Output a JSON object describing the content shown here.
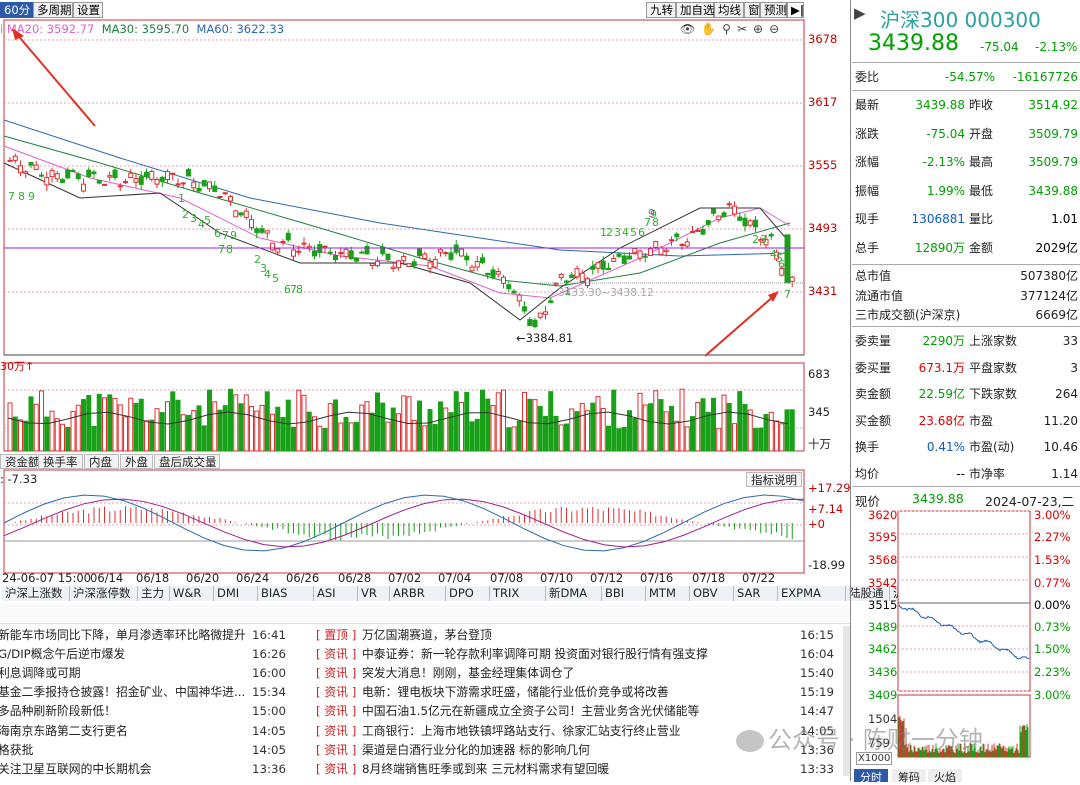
{
  "toolbar": {
    "period": "60分",
    "multi": "多周期",
    "settings": "设置",
    "right": [
      "九转",
      "加自选",
      "均线",
      "窗",
      "预测"
    ]
  },
  "ma": {
    "ma20": "MA20: 3592.77",
    "ma30": "MA30: 3595.70",
    "ma60": "MA60: 3622.33"
  },
  "price_axis": [
    "3678",
    "3617",
    "3555",
    "3493",
    "3431"
  ],
  "low_label": "3384.81",
  "band_label": "3433.30~3438.12",
  "vol": {
    "unit": "30万↑",
    "ticks": [
      "683",
      "345"
    ],
    "unit2": "十万"
  },
  "vol_tabs": [
    "资金额",
    "换手率",
    "内盘",
    "外盘",
    "盘后成交量"
  ],
  "macd": {
    "label": "-7.33",
    "button": "指标说明",
    "ticks": [
      "17.29",
      "7.14",
      "0",
      "-18.99"
    ]
  },
  "dates": [
    "24-06-07 15:00",
    "06/14",
    "06/18",
    "06/20",
    "06/24",
    "06/26",
    "06/28",
    "07/02",
    "07/04",
    "07/08",
    "07/10",
    "07/12",
    "07/16",
    "07/18",
    "07/22"
  ],
  "indicator_tabs": [
    "沪深上涨数",
    "沪深涨停数",
    "主力",
    "W&R",
    "DMI",
    "BIAS",
    "ASI",
    "VR",
    "ARBR",
    "DPO",
    "TRIX",
    "新DMA",
    "BBI",
    "MTM",
    "OBV",
    "SAR",
    "EXPMA",
    "陆股通",
    "沪股通",
    "深"
  ],
  "nine_green": [
    "7",
    "8",
    "9",
    "1",
    "2",
    "3",
    "4",
    "5",
    "6",
    "7",
    "8",
    "9",
    "1",
    "2",
    "3",
    "4",
    "5",
    "6",
    "7",
    "8",
    "9",
    "1",
    "2",
    "3",
    "4",
    "5",
    "6",
    "7"
  ],
  "nine_green_right": [
    "1",
    "2",
    "3",
    "4",
    "5",
    "6",
    "7",
    "8",
    "9",
    "2",
    "3",
    "4",
    "5",
    "6",
    "7"
  ],
  "news_left": [
    {
      "t": "新能车市场同比下降，单月渗透率环比略微提升",
      "time": "16:41"
    },
    {
      "t": "G/DIP概念午后逆市爆发",
      "time": "16:26"
    },
    {
      "t": "利息调降或可期",
      "time": "16:00"
    },
    {
      "t": "基金二季报持仓披露！招金矿业、中国神华进...",
      "time": "15:34"
    },
    {
      "t": "多品种刷新阶段新低！",
      "time": "15:00"
    },
    {
      "t": "海南京东路第二支行更名",
      "time": "14:05"
    },
    {
      "t": "格获批",
      "time": "14:05"
    },
    {
      "t": "关注卫星互联网的中长期机会",
      "time": "13:36"
    }
  ],
  "news_right": [
    {
      "tag": "置顶",
      "t": "万亿国潮赛道，茅台登顶",
      "time": "16:15"
    },
    {
      "tag": "资讯",
      "t": "中泰证券：新一轮存款利率调降可期 投资面对银行股行情有强支撑",
      "time": "16:04"
    },
    {
      "tag": "资讯",
      "t": "突发大消息！刚刚，基金经理集体调仓了",
      "time": "15:40"
    },
    {
      "tag": "资讯",
      "t": "电新：锂电板块下游需求旺盛，储能行业低价竞争或将改善",
      "time": "15:19"
    },
    {
      "tag": "资讯",
      "t": "中国石油1.5亿元在新疆成立全资子公司！主营业务含光伏储能等",
      "time": "14:47"
    },
    {
      "tag": "资讯",
      "t": "工商银行：上海市地铁镇坪路站支行、徐家汇站支行终止营业",
      "time": "14:05"
    },
    {
      "tag": "资讯",
      "t": "渠道是白酒行业分化的加速器 标的影响几何",
      "time": "13:36"
    },
    {
      "tag": "资讯",
      "t": "8月终端销售旺季或到来 三元材料需求有望回暖",
      "time": "13:33"
    }
  ],
  "quote": {
    "name": "沪深300 000300",
    "price": "3439.88",
    "chg": "-75.04",
    "pct": "-2.13%",
    "weibi": {
      "l": "委比",
      "a": "-54.57%",
      "b": "-16167726"
    },
    "rows": [
      [
        "最新",
        "3439.88",
        "昨收",
        "3514.92"
      ],
      [
        "涨跌",
        "-75.04",
        "开盘",
        "3509.79"
      ],
      [
        "涨幅",
        "-2.13%",
        "最高",
        "3509.79"
      ],
      [
        "振幅",
        "1.99%",
        "最低",
        "3439.88"
      ],
      [
        "现手",
        "1306881",
        "量比",
        "1.01"
      ],
      [
        "总手",
        "12890万",
        "金额",
        "2029亿"
      ]
    ],
    "cap": [
      [
        "总市值",
        "507380亿"
      ],
      [
        "流通市值",
        "377124亿"
      ],
      [
        "三市成交额(沪深京)",
        "6669亿"
      ]
    ],
    "orders": [
      [
        "委卖量",
        "2290万",
        "上涨家数",
        "33"
      ],
      [
        "委买量",
        "673.1万",
        "平盘家数",
        "3"
      ],
      [
        "卖金额",
        "22.59亿",
        "下跌家数",
        "264"
      ],
      [
        "买金额",
        "23.68亿",
        "市盈",
        "11.20"
      ],
      [
        "换手",
        "0.41%",
        "市盈(动)",
        "10.46"
      ],
      [
        "均价",
        "--",
        "市净率",
        "1.14"
      ]
    ],
    "now_label": "现价",
    "now_price": "3439.88",
    "date": "2024-07-23,二"
  },
  "mini": {
    "left": [
      "3620",
      "3595",
      "3568",
      "3542",
      "3515",
      "3489",
      "3462",
      "3436",
      "3409",
      "1504",
      "759",
      "X1000"
    ],
    "right": [
      "3.00%",
      "2.27%",
      "1.53%",
      "0.77%",
      "0.00%",
      "0.73%",
      "1.50%",
      "2.23%",
      "3.00%"
    ],
    "tabs": [
      "分时",
      "筹码",
      "火焰"
    ]
  },
  "watermark": "公众号 · 陈财一分钟"
}
